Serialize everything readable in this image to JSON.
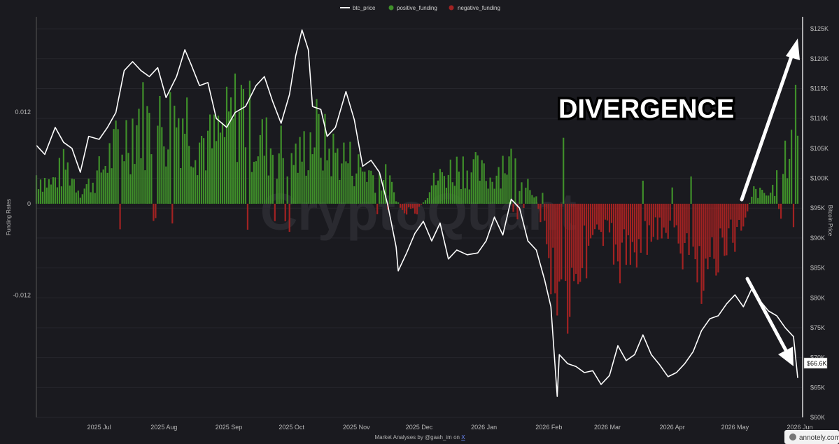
{
  "legend": {
    "btc_price": "btc_price",
    "positive_funding": "positive_funding",
    "negative_funding": "negative_funding"
  },
  "axes": {
    "left_title": "Funding Rates",
    "right_title": "Bitcoin Price",
    "left_ticks": [
      "0.012",
      "0",
      "-0.012"
    ],
    "right_ticks": [
      "$125K",
      "$120K",
      "$115K",
      "$110K",
      "$105K",
      "$100K",
      "$95K",
      "$90K",
      "$85K",
      "$80K",
      "$75K",
      "$70K",
      "$65K",
      "$60K"
    ],
    "x_ticks": [
      "2025 Jul",
      "2025 Aug",
      "2025 Sep",
      "2025 Oct",
      "2025 Nov",
      "2025 Dec",
      "2026 Jan",
      "2026 Feb",
      "2026 Mar",
      "2026 Apr",
      "2026 May",
      "2026 Jun"
    ]
  },
  "watermark": "CryptoQuant",
  "annotation": "DIVERGENCE",
  "price_badge": "$66.6K",
  "credit": {
    "prefix": "Market Analyses by @gaah_im on ",
    "link": "X"
  },
  "annotely": "annotely.com",
  "colors": {
    "background": "#1a1a1f",
    "positive": "#3f8f2a",
    "negative": "#a22222",
    "price": "#ffffff"
  },
  "chart_data": {
    "type": "bar",
    "series": [
      {
        "name": "btc_price",
        "kind": "line",
        "axis": "right"
      },
      {
        "name": "positive_funding",
        "kind": "bar",
        "axis": "left"
      },
      {
        "name": "negative_funding",
        "kind": "bar",
        "axis": "left"
      }
    ],
    "left_range": [
      -0.028,
      0.0245
    ],
    "right_range": [
      60000,
      127000
    ],
    "btc_price": [
      [
        "2025-06-01",
        105500
      ],
      [
        "2025-06-05",
        104000
      ],
      [
        "2025-06-10",
        108500
      ],
      [
        "2025-06-14",
        106000
      ],
      [
        "2025-06-18",
        105000
      ],
      [
        "2025-06-22",
        101000
      ],
      [
        "2025-06-26",
        107000
      ],
      [
        "2025-07-01",
        106500
      ],
      [
        "2025-07-05",
        108500
      ],
      [
        "2025-07-09",
        111000
      ],
      [
        "2025-07-13",
        118000
      ],
      [
        "2025-07-17",
        119500
      ],
      [
        "2025-07-21",
        118000
      ],
      [
        "2025-07-25",
        117000
      ],
      [
        "2025-07-29",
        118500
      ],
      [
        "2025-08-02",
        113500
      ],
      [
        "2025-08-07",
        117000
      ],
      [
        "2025-08-11",
        121500
      ],
      [
        "2025-08-14",
        119000
      ],
      [
        "2025-08-18",
        115500
      ],
      [
        "2025-08-22",
        116000
      ],
      [
        "2025-08-26",
        110000
      ],
      [
        "2025-08-31",
        108500
      ],
      [
        "2025-09-04",
        111000
      ],
      [
        "2025-09-09",
        112000
      ],
      [
        "2025-09-14",
        115500
      ],
      [
        "2025-09-18",
        117000
      ],
      [
        "2025-09-22",
        112800
      ],
      [
        "2025-09-26",
        109200
      ],
      [
        "2025-09-30",
        114000
      ],
      [
        "2025-10-03",
        120500
      ],
      [
        "2025-10-06",
        124800
      ],
      [
        "2025-10-09",
        121500
      ],
      [
        "2025-10-11",
        112000
      ],
      [
        "2025-10-15",
        111500
      ],
      [
        "2025-10-18",
        107000
      ],
      [
        "2025-10-22",
        108500
      ],
      [
        "2025-10-27",
        114500
      ],
      [
        "2025-10-31",
        109800
      ],
      [
        "2025-11-04",
        102000
      ],
      [
        "2025-11-08",
        103000
      ],
      [
        "2025-11-12",
        101000
      ],
      [
        "2025-11-16",
        95500
      ],
      [
        "2025-11-20",
        88500
      ],
      [
        "2025-11-21",
        84500
      ],
      [
        "2025-11-25",
        87500
      ],
      [
        "2025-11-29",
        90800
      ],
      [
        "2025-12-03",
        92800
      ],
      [
        "2025-12-07",
        89500
      ],
      [
        "2025-12-11",
        92500
      ],
      [
        "2025-12-15",
        86500
      ],
      [
        "2025-12-19",
        88000
      ],
      [
        "2025-12-24",
        87200
      ],
      [
        "2025-12-29",
        87500
      ],
      [
        "2026-01-02",
        89500
      ],
      [
        "2026-01-06",
        93500
      ],
      [
        "2026-01-10",
        90500
      ],
      [
        "2026-01-14",
        96500
      ],
      [
        "2026-01-18",
        95000
      ],
      [
        "2026-01-22",
        89500
      ],
      [
        "2026-01-26",
        88000
      ],
      [
        "2026-01-30",
        83000
      ],
      [
        "2026-02-02",
        78500
      ],
      [
        "2026-02-05",
        63500
      ],
      [
        "2026-02-06",
        70500
      ],
      [
        "2026-02-10",
        69000
      ],
      [
        "2026-02-14",
        68500
      ],
      [
        "2026-02-18",
        67500
      ],
      [
        "2026-02-22",
        67800
      ],
      [
        "2026-02-26",
        65500
      ],
      [
        "2026-03-02",
        67000
      ],
      [
        "2026-03-06",
        72000
      ],
      [
        "2026-03-10",
        69500
      ],
      [
        "2026-03-14",
        70500
      ],
      [
        "2026-03-18",
        73800
      ],
      [
        "2026-03-22",
        70500
      ],
      [
        "2026-03-26",
        68800
      ],
      [
        "2026-03-30",
        66800
      ],
      [
        "2026-04-03",
        67500
      ],
      [
        "2026-04-07",
        69000
      ],
      [
        "2026-04-11",
        71000
      ],
      [
        "2026-04-15",
        74500
      ],
      [
        "2026-04-19",
        76500
      ],
      [
        "2026-04-23",
        77000
      ],
      [
        "2026-04-27",
        79000
      ],
      [
        "2026-05-01",
        80500
      ],
      [
        "2026-05-05",
        78500
      ],
      [
        "2026-05-09",
        81500
      ],
      [
        "2026-05-13",
        79500
      ],
      [
        "2026-05-17",
        77800
      ],
      [
        "2026-05-21",
        77000
      ],
      [
        "2026-05-25",
        75000
      ],
      [
        "2026-05-29",
        73500
      ],
      [
        "2026-05-31",
        66600
      ]
    ],
    "funding_weekly": [
      [
        "2025-06-01",
        0.0042
      ],
      [
        "2025-06-08",
        0.0028
      ],
      [
        "2025-06-15",
        0.0055
      ],
      [
        "2025-06-22",
        0.0018
      ],
      [
        "2025-06-29",
        0.0035
      ],
      [
        "2025-07-06",
        0.0068
      ],
      [
        "2025-07-13",
        0.0095
      ],
      [
        "2025-07-20",
        0.0125
      ],
      [
        "2025-07-27",
        0.0105
      ],
      [
        "2025-08-03",
        0.0118
      ],
      [
        "2025-08-10",
        0.0132
      ],
      [
        "2025-08-17",
        0.0098
      ],
      [
        "2025-08-24",
        0.0085
      ],
      [
        "2025-08-31",
        0.0108
      ],
      [
        "2025-09-07",
        0.0145
      ],
      [
        "2025-09-14",
        0.0092
      ],
      [
        "2025-09-21",
        0.0082
      ],
      [
        "2025-09-28",
        0.0074
      ],
      [
        "2025-10-05",
        0.0066
      ],
      [
        "2025-10-12",
        0.0105
      ],
      [
        "2025-10-19",
        0.0075
      ],
      [
        "2025-10-26",
        0.0068
      ],
      [
        "2025-11-02",
        0.0052
      ],
      [
        "2025-11-09",
        0.0042
      ],
      [
        "2025-11-16",
        0.0036
      ],
      [
        "2025-11-23",
        -0.0012
      ],
      [
        "2025-11-30",
        -0.0015
      ],
      [
        "2025-12-07",
        0.0028
      ],
      [
        "2025-12-14",
        0.0045
      ],
      [
        "2025-12-21",
        0.0055
      ],
      [
        "2025-12-28",
        0.0048
      ],
      [
        "2026-01-04",
        0.0035
      ],
      [
        "2026-01-11",
        0.0065
      ],
      [
        "2026-01-18",
        0.0045
      ],
      [
        "2026-01-25",
        0.0022
      ],
      [
        "2026-02-01",
        -0.0072
      ],
      [
        "2026-02-08",
        -0.0155
      ],
      [
        "2026-02-15",
        -0.0085
      ],
      [
        "2026-02-22",
        -0.0055
      ],
      [
        "2026-03-01",
        -0.0048
      ],
      [
        "2026-03-08",
        -0.0082
      ],
      [
        "2026-03-15",
        -0.0062
      ],
      [
        "2026-03-22",
        -0.0041
      ],
      [
        "2026-03-29",
        -0.0035
      ],
      [
        "2026-04-05",
        -0.0068
      ],
      [
        "2026-04-12",
        -0.0098
      ],
      [
        "2026-04-19",
        -0.0085
      ],
      [
        "2026-04-26",
        -0.0065
      ],
      [
        "2026-05-03",
        -0.0042
      ],
      [
        "2026-05-10",
        0.0018
      ],
      [
        "2026-05-17",
        0.0012
      ],
      [
        "2026-05-24",
        0.0045
      ],
      [
        "2026-05-31",
        0.0145
      ]
    ]
  }
}
